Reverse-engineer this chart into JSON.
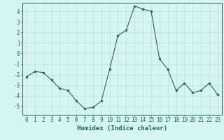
{
  "x": [
    0,
    1,
    2,
    3,
    4,
    5,
    6,
    7,
    8,
    9,
    10,
    11,
    12,
    13,
    14,
    15,
    16,
    17,
    18,
    19,
    20,
    21,
    22,
    23
  ],
  "y": [
    -2.2,
    -1.7,
    -1.8,
    -2.5,
    -3.3,
    -3.5,
    -4.5,
    -5.2,
    -5.1,
    -4.5,
    -1.5,
    1.7,
    2.2,
    4.5,
    4.2,
    4.0,
    -0.5,
    -1.5,
    -3.5,
    -2.8,
    -3.7,
    -3.5,
    -2.8,
    -3.9
  ],
  "xlabel": "Humidex (Indice chaleur)",
  "ylim": [
    -5.8,
    4.8
  ],
  "yticks": [
    -5,
    -4,
    -3,
    -2,
    -1,
    0,
    1,
    2,
    3,
    4
  ],
  "xticks": [
    0,
    1,
    2,
    3,
    4,
    5,
    6,
    7,
    8,
    9,
    10,
    11,
    12,
    13,
    14,
    15,
    16,
    17,
    18,
    19,
    20,
    21,
    22,
    23
  ],
  "line_color": "#1a6b5a",
  "marker_color": "#1a6b5a",
  "bg_color": "#d6f5f0",
  "grid_color": "#c0ddd8",
  "axes_color": "#1a6b5a",
  "tick_color": "#1a6b5a",
  "label_color": "#1a6b5a",
  "xlabel_fontsize": 6.5,
  "tick_fontsize": 5.5
}
